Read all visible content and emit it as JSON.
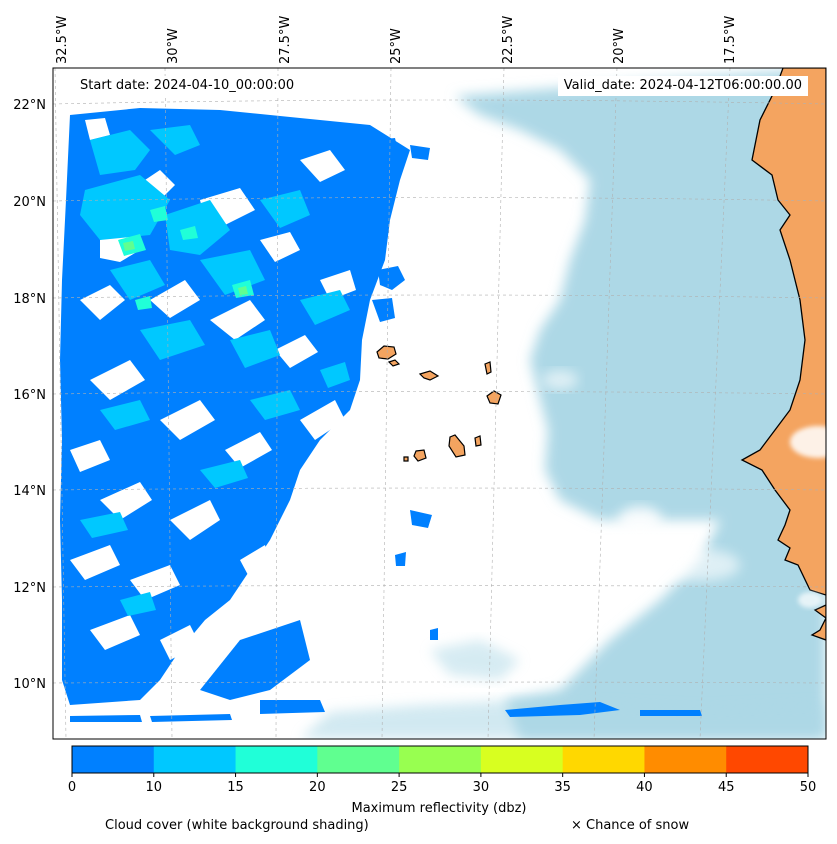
{
  "map": {
    "start_date": "Start date: 2024-04-10_00:00:00",
    "valid_date": "Valid_date: 2024-04-12T06:00:00.00",
    "lon_labels": [
      "32.5°W",
      "30°W",
      "27.5°W",
      "25°W",
      "22.5°W",
      "20°W",
      "17.5°W"
    ],
    "lat_labels": [
      "22°N",
      "20°N",
      "18°N",
      "16°N",
      "14°N",
      "12°N",
      "10°N"
    ],
    "colors": {
      "ocean_cloud": "#add8e6",
      "land": "#f4a460",
      "coast": "#000000"
    }
  },
  "colorbar": {
    "title": "Maximum reflectivity (dbz)",
    "ticks": [
      "0",
      "10",
      "15",
      "20",
      "25",
      "30",
      "35",
      "40",
      "45",
      "50"
    ],
    "colors": [
      "#0080ff",
      "#00c8ff",
      "#20ffd8",
      "#60ff90",
      "#98ff50",
      "#d8ff20",
      "#ffd800",
      "#ff8c00",
      "#ff4800"
    ]
  },
  "legend": {
    "cloud_cover": "Cloud cover (white background shading)",
    "snow": "× Chance of snow"
  }
}
